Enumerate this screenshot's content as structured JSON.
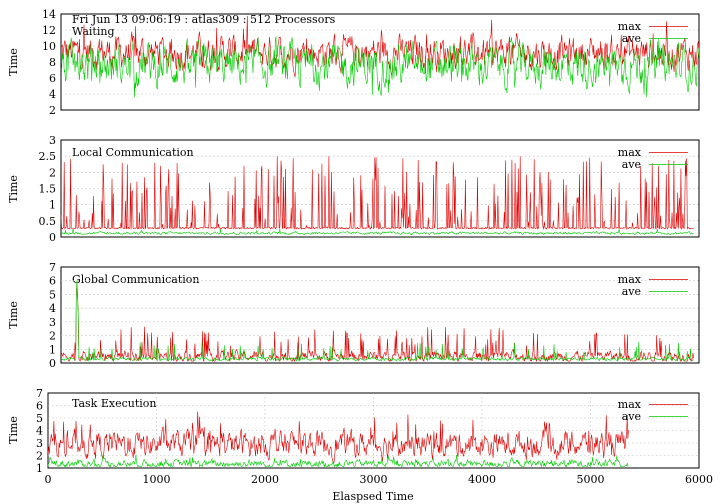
{
  "chart_data": [
    {
      "type": "line",
      "header": "Fri Jun 13 09:06:19 : atlas309 : 512 Processors",
      "title": "Waiting",
      "ylabel": "Time",
      "ylim": [
        2,
        14
      ],
      "yticks": [
        "2",
        "4",
        "6",
        "8",
        "10",
        "12",
        "14"
      ],
      "xlim": [
        0,
        6000
      ],
      "grid": "horizontal",
      "legend": "top-right",
      "series": [
        {
          "name": "max",
          "color": "#e00000",
          "stats": {
            "base": 9.2,
            "amp": 1.6,
            "spike_prob": 0.03,
            "spike": 3.5,
            "end_x": 6000
          }
        },
        {
          "name": "ave",
          "color": "#00cc00",
          "stats": {
            "base": 7.6,
            "amp": 2.0,
            "spike_prob": 0.03,
            "spike": -3.0,
            "end_x": 6000
          }
        }
      ]
    },
    {
      "type": "line",
      "title": "Local Communication",
      "ylabel": "Time",
      "ylim": [
        0,
        3
      ],
      "yticks": [
        "0",
        "0.5",
        "1",
        "1.5",
        "2",
        "2.5",
        "3"
      ],
      "xlim": [
        0,
        6000
      ],
      "grid": "horizontal",
      "legend": "top-right",
      "series": [
        {
          "name": "max",
          "color": "#e00000",
          "stats": {
            "base": 0.25,
            "high": 2.1,
            "burst_prob": 0.22,
            "end_x": 5950
          }
        },
        {
          "name": "ave",
          "color": "#00cc00",
          "stats": {
            "base": 0.12,
            "amp": 0.03,
            "spike_prob": 0.01,
            "spike": 0.15,
            "end_x": 5950
          }
        }
      ]
    },
    {
      "type": "line",
      "title": "Global Communication",
      "ylabel": "Time",
      "ylim": [
        0,
        7
      ],
      "yticks": [
        "0",
        "1",
        "2",
        "3",
        "4",
        "5",
        "6",
        "7"
      ],
      "xlim": [
        0,
        6000
      ],
      "grid": "horizontal",
      "legend": "top-right",
      "series": [
        {
          "name": "max",
          "color": "#e00000",
          "stats": {
            "base": 0.5,
            "amp": 0.3,
            "spike_prob": 0.08,
            "spike": 2.0,
            "peak_x": 150,
            "peak_y": 6.0,
            "end_x": 5950
          }
        },
        {
          "name": "ave",
          "color": "#00cc00",
          "stats": {
            "base": 0.3,
            "amp": 0.1,
            "spike_prob": 0.05,
            "spike": 1.2,
            "peak_x": 150,
            "peak_y": 6.0,
            "end_x": 5950
          }
        }
      ]
    },
    {
      "type": "line",
      "title": "Task Execution",
      "ylabel": "Time",
      "xlabel": "Elaspsed Time",
      "ylim": [
        1,
        7
      ],
      "yticks": [
        "1",
        "2",
        "3",
        "4",
        "5",
        "6",
        "7"
      ],
      "xticks": [
        "0",
        "1000",
        "2000",
        "3000",
        "4000",
        "5000",
        "6000"
      ],
      "xlim": [
        0,
        6000
      ],
      "grid": "both",
      "legend": "top-right",
      "series": [
        {
          "name": "max",
          "color": "#e00000",
          "stats": {
            "base": 2.9,
            "amp": 0.8,
            "spike_prob": 0.05,
            "spike": 1.8,
            "end_x": 5350
          }
        },
        {
          "name": "ave",
          "color": "#00cc00",
          "stats": {
            "base": 1.35,
            "amp": 0.25,
            "spike_prob": 0.04,
            "spike": 0.5,
            "end_x": 5350
          }
        }
      ]
    }
  ]
}
